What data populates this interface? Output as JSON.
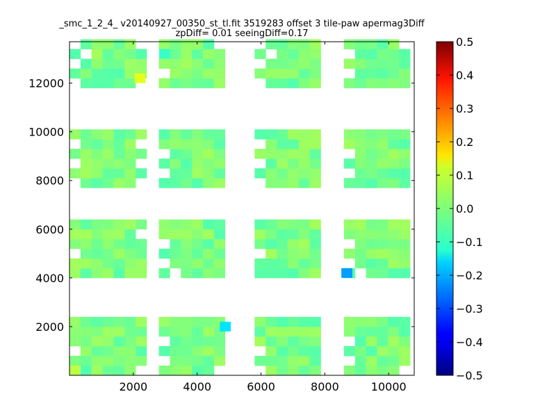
{
  "chart_data": {
    "type": "heatmap",
    "title_lines": [
      "_smc_1_2_4_ v20140927_00350_st_tl.fit 3519283 offset 3 tile-paw apermag3Diff",
      "zpDiff= 0.01 seeingDiff=0.17"
    ],
    "xlabel": "",
    "ylabel": "",
    "xlim": [
      0,
      10800
    ],
    "ylim": [
      0,
      13700
    ],
    "x_ticks": [
      2000,
      4000,
      6000,
      8000,
      10000
    ],
    "y_ticks": [
      2000,
      4000,
      6000,
      8000,
      10000,
      12000
    ],
    "x_tick_labels": [
      "2000",
      "4000",
      "6000",
      "8000",
      "10000"
    ],
    "y_tick_labels": [
      "2000",
      "4000",
      "6000",
      "8000",
      "10000",
      "12000"
    ],
    "colorbar": {
      "colormap": "jet",
      "vmin": -0.5,
      "vmax": 0.5,
      "ticks": [
        0.5,
        0.4,
        0.3,
        0.2,
        0.1,
        0.0,
        -0.1,
        -0.2,
        -0.3,
        -0.4,
        -0.5
      ],
      "tick_labels": [
        "0.5",
        "0.4",
        "0.3",
        "0.2",
        "0.1",
        "0.0",
        "−0.1",
        "−0.2",
        "−0.3",
        "−0.4",
        "−0.5"
      ]
    },
    "grid": false,
    "cell_size": [
      345,
      400
    ],
    "bands_y": [
      [
        0,
        2200
      ],
      [
        4000,
        6200
      ],
      [
        7700,
        9900
      ],
      [
        11800,
        13700
      ]
    ],
    "columns_x": [
      [
        0,
        2400
      ],
      [
        2800,
        5000
      ],
      [
        5800,
        8000
      ],
      [
        8600,
        10800
      ]
    ],
    "holes": [
      [
        [
          0,
          0
        ],
        [
          0,
          1
        ],
        [
          0,
          2
        ],
        [
          0,
          3
        ],
        [
          6,
          3
        ],
        [
          5,
          0
        ],
        [
          6,
          0
        ],
        [
          6,
          1
        ]
      ],
      [
        [
          0,
          1
        ],
        [
          0,
          2
        ],
        [
          0,
          3
        ],
        [
          6,
          4
        ],
        [
          1,
          0
        ]
      ],
      [
        [
          0,
          0
        ],
        [
          0,
          1
        ],
        [
          0,
          2
        ],
        [
          0,
          3
        ],
        [
          0,
          4
        ],
        [
          6,
          0
        ],
        [
          6,
          1
        ],
        [
          6,
          2
        ],
        [
          6,
          3
        ],
        [
          6,
          4
        ]
      ],
      [
        [
          0,
          0
        ],
        [
          0,
          1
        ],
        [
          0,
          2
        ],
        [
          0,
          3
        ],
        [
          1,
          3
        ],
        [
          0,
          4
        ],
        [
          5,
          4
        ],
        [
          6,
          4
        ],
        [
          6,
          0
        ]
      ]
    ],
    "outliers": [
      {
        "x": 8690,
        "y": 4200,
        "value": -0.22
      },
      {
        "x": 4880,
        "y": 2000,
        "value": -0.15
      },
      {
        "x": 2210,
        "y": 12200,
        "value": 0.1
      },
      {
        "x": 170,
        "y": 200,
        "value": 0.06
      },
      {
        "x": 2980,
        "y": 13200,
        "value": -0.07
      }
    ]
  }
}
